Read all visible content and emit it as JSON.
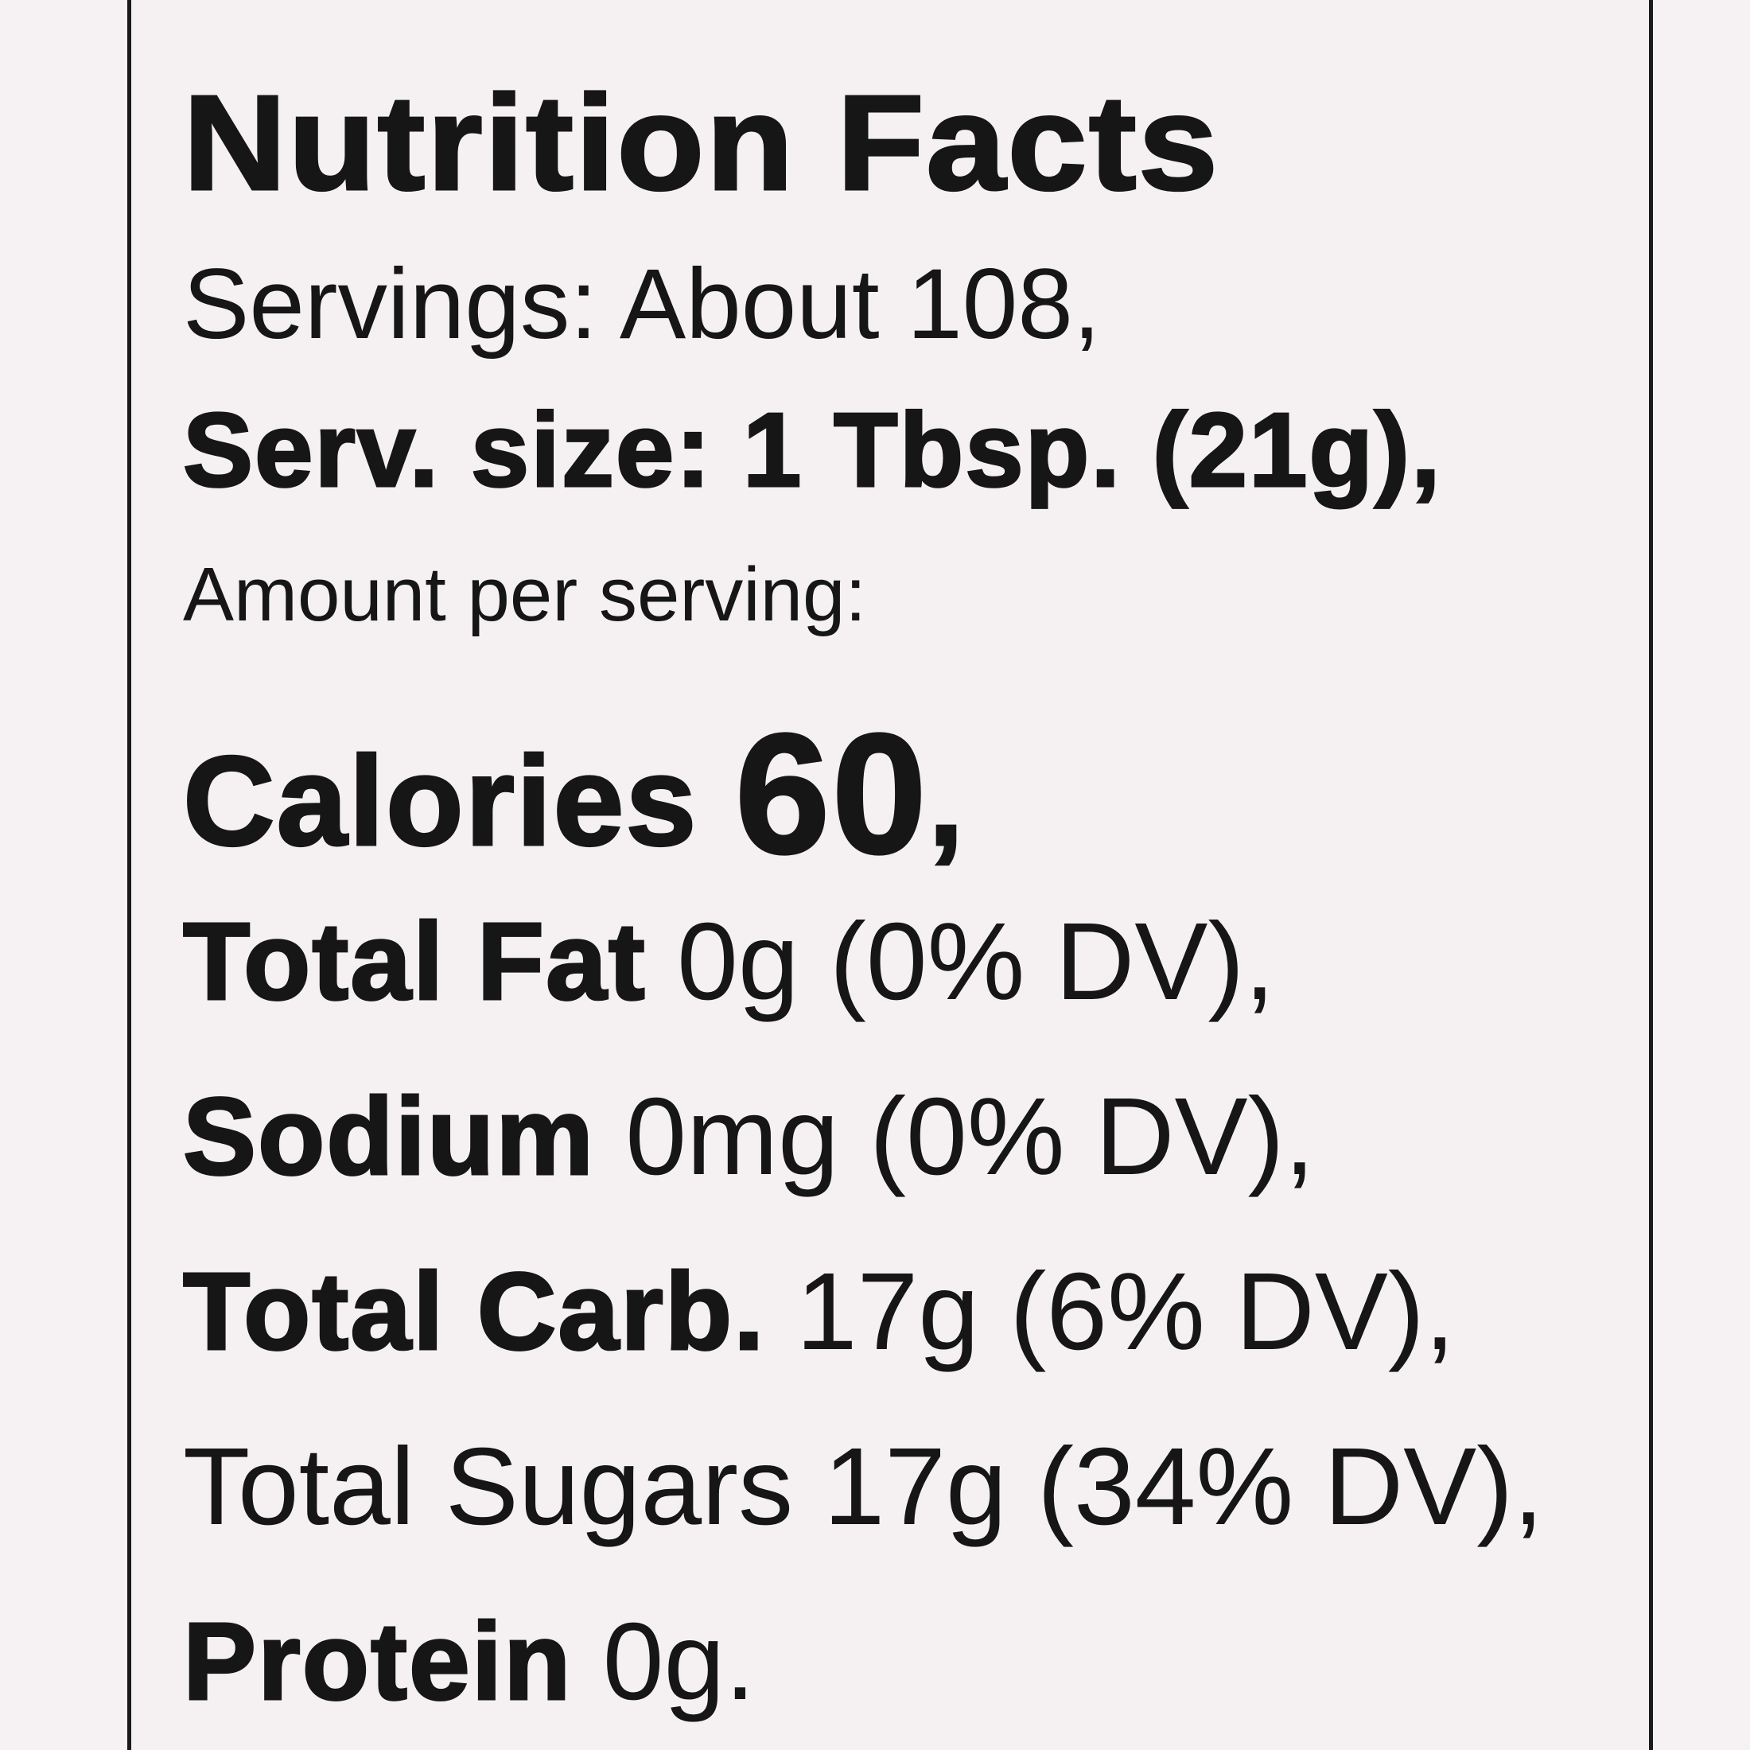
{
  "label": {
    "title": "Nutrition Facts",
    "servings": "Servings: About 108,",
    "serving_size": "Serv. size: 1 Tbsp. (21g),",
    "amount_per_serving": "Amount per serving:",
    "calories_label": "Calories",
    "calories_value": "60",
    "calories_suffix": ",",
    "nutrients": [
      {
        "name": "Total Fat",
        "detail": "0g (0% DV),",
        "bold": true
      },
      {
        "name": "Sodium",
        "detail": "0mg (0% DV),",
        "bold": true
      },
      {
        "name": "Total Carb.",
        "detail": "17g (6% DV),",
        "bold": true
      },
      {
        "name": "Total Sugars",
        "detail": "17g (34% DV),",
        "bold": false
      },
      {
        "name": "Protein",
        "detail": "0g.",
        "bold": true
      }
    ]
  },
  "colors": {
    "background": "#f6f2f4",
    "text": "#161616",
    "border": "#1a1a1a"
  }
}
